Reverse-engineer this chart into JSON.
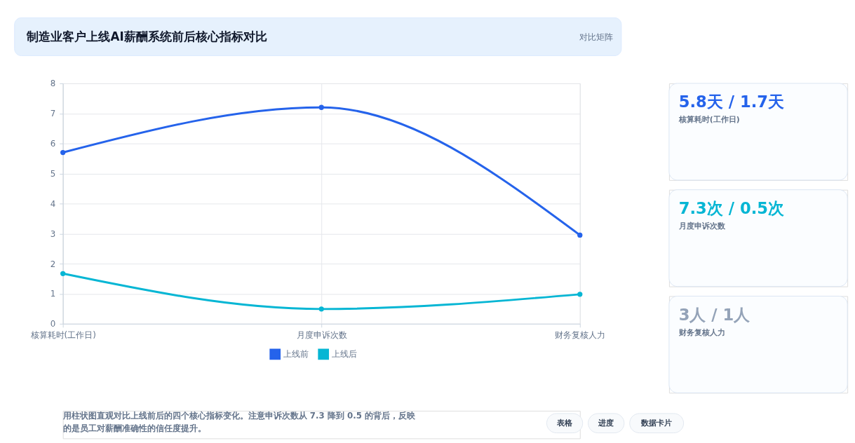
{
  "chart_data": [
    {
      "type": "line",
      "title": "制造业客户上线AI薪酬系统前后核心指标对比",
      "subtitle": "对比矩阵",
      "categories": [
        "核算耗时(工作日)",
        "月度申诉次数",
        "财务复核人力"
      ],
      "series": [
        {
          "name": "上线前",
          "color": "#2563eb",
          "values": [
            5.7,
            7.2,
            2.95
          ]
        },
        {
          "name": "上线后",
          "color": "#06b6d4",
          "values": [
            1.67,
            0.49,
            0.98
          ]
        }
      ],
      "ylim": [
        0,
        8
      ],
      "yticks": [
        0,
        1,
        2,
        3,
        4,
        5,
        6,
        7,
        8
      ],
      "grid": true,
      "legend": "bottom",
      "marker": "circle",
      "line_style": "solid",
      "annotations": [
        "用柱状图直观对比上线前后的四个核心指标变化。注意申诉次数从 7.3 降到 0.5 的背后，反映的是员工对薪酬准确性的信任度提升。",
        "表格",
        "进度",
        "数据卡片"
      ]
    },
    {
      "type": "other",
      "title": "5.8天 / 1.7天",
      "subtitle": "核算耗时(工作日)",
      "color": "#2563eb"
    },
    {
      "type": "other",
      "title": "7.3次 / 0.5次",
      "subtitle": "月度申诉次数",
      "color": "#06b6d4"
    },
    {
      "type": "other",
      "title": "3人 / 1人",
      "subtitle": "财务复核人力",
      "color": "#94a3b8"
    }
  ]
}
